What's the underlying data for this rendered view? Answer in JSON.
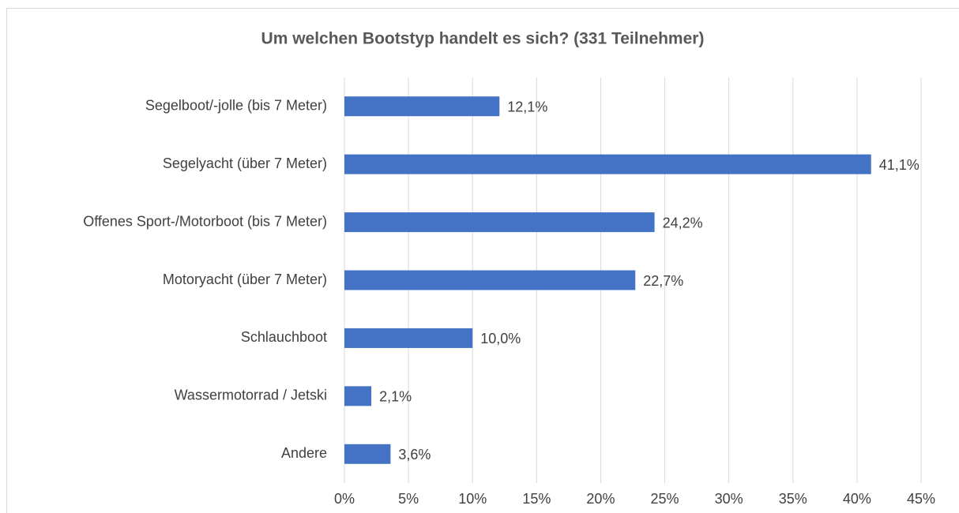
{
  "chart_data": {
    "type": "barh",
    "title": "Um welchen Bootstyp handelt es sich? (331 Teilnehmer)",
    "categories": [
      "Segelboot/-jolle (bis 7 Meter)",
      "Segelyacht (über 7 Meter)",
      "Offenes Sport-/Motorboot (bis 7 Meter)",
      "Motoryacht (über 7 Meter)",
      "Schlauchboot",
      "Wassermotorrad / Jetski",
      "Andere"
    ],
    "values": [
      12.1,
      41.1,
      24.2,
      22.7,
      10.0,
      2.1,
      3.6
    ],
    "value_labels": [
      "12,1%",
      "41,1%",
      "24,2%",
      "22,7%",
      "10,0%",
      "2,1%",
      "3,6%"
    ],
    "color": "#4472c4",
    "xlim": [
      0,
      45
    ],
    "xticks": [
      {
        "value": 0,
        "label": "0%"
      },
      {
        "value": 5,
        "label": "5%"
      },
      {
        "value": 10,
        "label": "10%"
      },
      {
        "value": 15,
        "label": "15%"
      },
      {
        "value": 20,
        "label": "20%"
      },
      {
        "value": 25,
        "label": "25%"
      },
      {
        "value": 30,
        "label": "30%"
      },
      {
        "value": 35,
        "label": "35%"
      },
      {
        "value": 40,
        "label": "40%"
      },
      {
        "value": 45,
        "label": "45%"
      }
    ],
    "grid": true
  }
}
